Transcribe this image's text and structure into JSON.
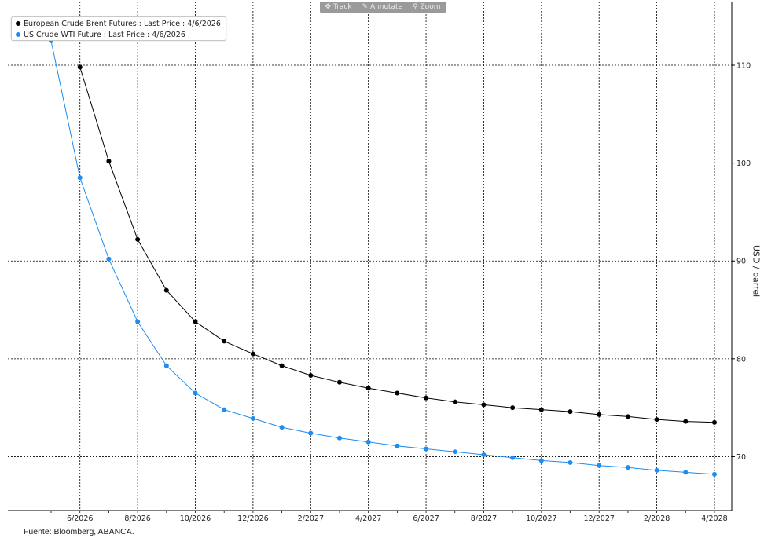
{
  "toolbar": {
    "track_label": "Track",
    "annotate_label": "Annotate",
    "zoom_label": "Zoom"
  },
  "legend": {
    "items": [
      {
        "label": "European Crude Brent Futures : Last Price : 4/6/2026",
        "color": "#000000"
      },
      {
        "label": "US Crude WTI Future : Last Price : 4/6/2026",
        "color": "#1e8cf0"
      }
    ]
  },
  "source": "Fuente: Bloomberg, ABANCA.",
  "chart_data": {
    "type": "line",
    "ylabel": "USD / barrel",
    "xlabel": "",
    "y_ticks": [
      70,
      80,
      90,
      100,
      110
    ],
    "ylim": [
      64.5,
      116.5
    ],
    "x_tick_labels": [
      "6/2026",
      "8/2026",
      "10/2026",
      "12/2026",
      "2/2027",
      "4/2027",
      "6/2027",
      "8/2027",
      "10/2027",
      "12/2027",
      "2/2028",
      "4/2028"
    ],
    "x_tick_months": [
      1,
      3,
      5,
      7,
      9,
      11,
      13,
      15,
      17,
      19,
      21,
      23
    ],
    "xlim": [
      -1.5,
      23.6
    ],
    "grid": true,
    "legend_position": "top-left",
    "series": [
      {
        "name": "European Crude Brent Futures : Last Price : 4/6/2026",
        "color": "#000000",
        "x": [
          1,
          2,
          3,
          4,
          5,
          6,
          7,
          8,
          9,
          10,
          11,
          12,
          13,
          14,
          15,
          16,
          17,
          18,
          19,
          20,
          21,
          22,
          23
        ],
        "values": [
          109.8,
          100.2,
          92.2,
          87.0,
          83.8,
          81.8,
          80.5,
          79.3,
          78.3,
          77.6,
          77.0,
          76.5,
          76.0,
          75.6,
          75.3,
          75.0,
          74.8,
          74.6,
          74.3,
          74.1,
          73.8,
          73.6,
          73.5
        ]
      },
      {
        "name": "US Crude WTI Future : Last Price : 4/6/2026",
        "color": "#1e8cf0",
        "x": [
          0,
          1,
          2,
          3,
          4,
          5,
          6,
          7,
          8,
          9,
          10,
          11,
          12,
          13,
          14,
          15,
          16,
          17,
          18,
          19,
          20,
          21,
          22,
          23
        ],
        "values": [
          112.5,
          98.5,
          90.2,
          83.8,
          79.3,
          76.5,
          74.8,
          73.9,
          73.0,
          72.4,
          71.9,
          71.5,
          71.1,
          70.8,
          70.5,
          70.2,
          69.9,
          69.6,
          69.4,
          69.1,
          68.9,
          68.6,
          68.4,
          68.2
        ]
      }
    ]
  }
}
